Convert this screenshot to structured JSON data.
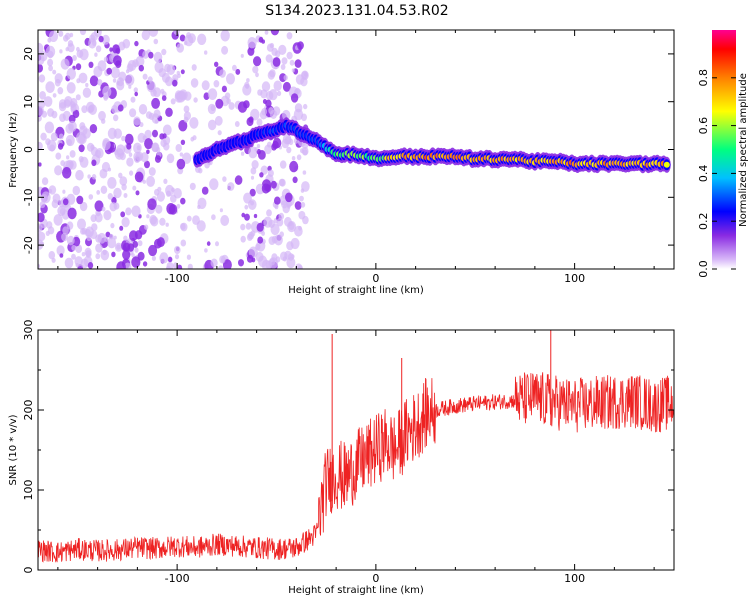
{
  "figure": {
    "title": "S134.2023.131.04.53.R02"
  },
  "chart_data": [
    {
      "type": "heatmap",
      "title": "",
      "xlabel": "Height of straight line (km)",
      "ylabel": "Frequency (Hz)",
      "xlim": [
        -170,
        150
      ],
      "ylim": [
        -25,
        25
      ],
      "xticks": [
        -100,
        0,
        100
      ],
      "yticks": [
        -20,
        -10,
        0,
        10,
        20
      ],
      "grid": false,
      "colorbar": {
        "label": "Normalized spectral amplitude",
        "range": [
          0,
          1
        ],
        "ticks": [
          0.0,
          0.2,
          0.4,
          0.6,
          0.8
        ],
        "colormap": [
          "#ffffff",
          "#d8b8f8",
          "#8a2be2",
          "#0000ff",
          "#00c0ff",
          "#00ff80",
          "#ffff00",
          "#ff8000",
          "#ff0000",
          "#ff00a0"
        ]
      },
      "signal_track": [
        {
          "x": -90,
          "freq": -2,
          "amp": 0.25
        },
        {
          "x": -80,
          "freq": 0,
          "amp": 0.22
        },
        {
          "x": -45,
          "freq": 5,
          "amp": 0.3
        },
        {
          "x": -30,
          "freq": 2,
          "amp": 0.28
        },
        {
          "x": -20,
          "freq": -1,
          "amp": 0.55
        },
        {
          "x": -10,
          "freq": -1,
          "amp": 0.6
        },
        {
          "x": 0,
          "freq": -2,
          "amp": 0.55
        },
        {
          "x": 10,
          "freq": -1.5,
          "amp": 0.75
        },
        {
          "x": 20,
          "freq": -1.5,
          "amp": 0.8
        },
        {
          "x": 30,
          "freq": -1.5,
          "amp": 0.85
        },
        {
          "x": 40,
          "freq": -1.5,
          "amp": 0.8
        },
        {
          "x": 50,
          "freq": -2,
          "amp": 0.75
        },
        {
          "x": 60,
          "freq": -2,
          "amp": 0.8
        },
        {
          "x": 70,
          "freq": -2,
          "amp": 0.75
        },
        {
          "x": 80,
          "freq": -2.5,
          "amp": 0.8
        },
        {
          "x": 90,
          "freq": -2.5,
          "amp": 0.75
        },
        {
          "x": 100,
          "freq": -3,
          "amp": 0.8
        },
        {
          "x": 110,
          "freq": -3,
          "amp": 0.75
        },
        {
          "x": 120,
          "freq": -3,
          "amp": 0.8
        },
        {
          "x": 130,
          "freq": -3,
          "amp": 0.75
        },
        {
          "x": 140,
          "freq": -3,
          "amp": 0.8
        },
        {
          "x": 148,
          "freq": -3,
          "amp": 0.75
        }
      ]
    },
    {
      "type": "line",
      "title": "",
      "xlabel": "Height of straight line (km)",
      "ylabel": "SNR (10 * v/v)",
      "xlim": [
        -170,
        150
      ],
      "ylim": [
        0,
        300
      ],
      "xticks": [
        -100,
        0,
        100
      ],
      "yticks": [
        0,
        100,
        200,
        300
      ],
      "grid": false,
      "series": [
        {
          "color": "#ee2222",
          "x": [
            -170,
            -160,
            -150,
            -140,
            -130,
            -120,
            -110,
            -100,
            -90,
            -80,
            -70,
            -60,
            -50,
            -40,
            -30,
            -25,
            -20,
            -15,
            -10,
            -5,
            0,
            5,
            10,
            15,
            20,
            25,
            30,
            40,
            50,
            60,
            70,
            80,
            90,
            100,
            110,
            120,
            130,
            140,
            150
          ],
          "y": [
            25,
            22,
            26,
            24,
            25,
            28,
            27,
            30,
            28,
            32,
            30,
            28,
            26,
            28,
            45,
            110,
            120,
            115,
            130,
            140,
            150,
            160,
            150,
            170,
            180,
            195,
            200,
            205,
            208,
            210,
            212,
            215,
            210,
            205,
            208,
            210,
            212,
            205,
            210
          ]
        }
      ],
      "spikes": [
        {
          "x": -22,
          "y": 295
        },
        {
          "x": 13,
          "y": 265
        },
        {
          "x": 88,
          "y": 300
        }
      ]
    }
  ]
}
